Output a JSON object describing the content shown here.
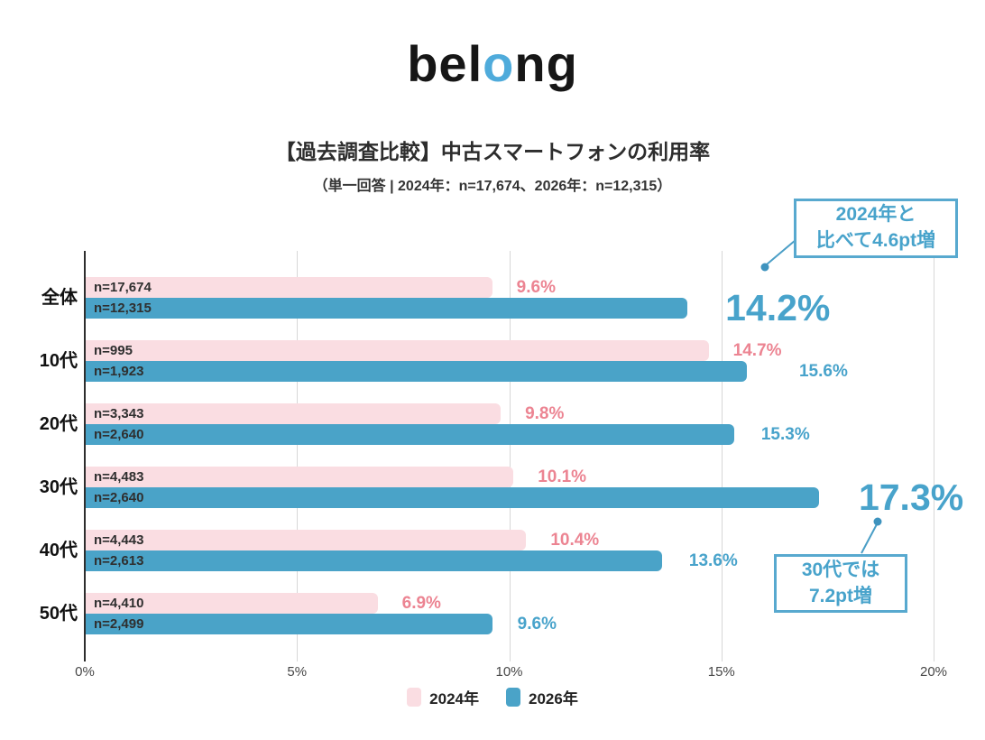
{
  "logo": {
    "part1": "bel",
    "part2": "o",
    "part3": "ng"
  },
  "header": {
    "title": "【過去調査比較】中古スマートフォンの利用率",
    "subtitle": "（単一回答 | 2024年：n=17,674、2026年：n=12,315）"
  },
  "chart_data": {
    "type": "bar",
    "orientation": "horizontal",
    "title": "【過去調査比較】中古スマートフォンの利用率",
    "subtitle": "（単一回答 | 2024年：n=17,674、2026年：n=12,315）",
    "categories": [
      "全体",
      "10代",
      "20代",
      "30代",
      "40代",
      "50代"
    ],
    "series": [
      {
        "name": "2024年",
        "color": "#fadde2",
        "label_color": "#ec8492",
        "values": [
          9.6,
          14.7,
          9.8,
          10.1,
          10.4,
          6.9
        ],
        "n_labels": [
          "n=17,674",
          "n=995",
          "n=3,343",
          "n=4,483",
          "n=4,443",
          "n=4,410"
        ]
      },
      {
        "name": "2026年",
        "color": "#4aa3c8",
        "label_color": "#48a3cb",
        "values": [
          14.2,
          15.6,
          15.3,
          17.3,
          13.6,
          9.6
        ],
        "n_labels": [
          "n=12,315",
          "n=1,923",
          "n=2,640",
          "n=2,640",
          "n=2,613",
          "n=2,499"
        ]
      }
    ],
    "value_suffix": "%",
    "xlim": [
      0,
      20
    ],
    "x_ticks": [
      "0%",
      "5%",
      "10%",
      "15%",
      "20%"
    ],
    "grid": true,
    "legend_position": "bottom",
    "emphasized_values": [
      {
        "category": "全体",
        "series": "2026年",
        "value": 14.2
      },
      {
        "category": "30代",
        "series": "2026年",
        "value": 17.3
      }
    ]
  },
  "annotations": [
    {
      "line1": "2024年と",
      "line2": "比べて4.6pt増"
    },
    {
      "line1": "30代では",
      "line2": "7.2pt増"
    }
  ],
  "colors": {
    "accent_blue": "#48a3cb",
    "bar_blue": "#4aa3c8",
    "bar_pink": "#fadde2",
    "pink_text": "#ec8492",
    "logo_blue": "#4fabdb",
    "gridline": "#d7d7d7",
    "axis": "#2e2e2e"
  }
}
